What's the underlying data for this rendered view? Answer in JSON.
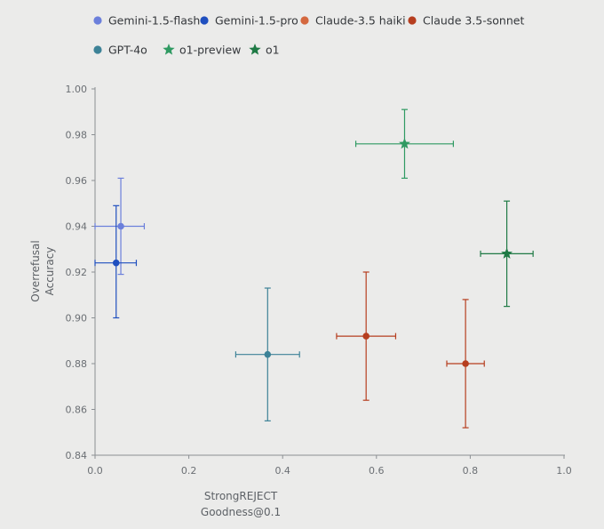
{
  "chart_data": {
    "type": "scatter",
    "title": "",
    "xlabel": [
      "StrongREJECT",
      "Goodness@0.1"
    ],
    "ylabel": [
      "Overrefusal",
      "Accuracy"
    ],
    "xlim": [
      0.0,
      1.0
    ],
    "ylim": [
      0.84,
      1.0
    ],
    "xticks": [
      "0.0",
      "0.2",
      "0.4",
      "0.6",
      "0.8",
      "1.0"
    ],
    "yticks": [
      "0.84",
      "0.86",
      "0.88",
      "0.90",
      "0.92",
      "0.94",
      "0.96",
      "0.98",
      "1.00"
    ],
    "grid": false,
    "legend_position": "top",
    "series": [
      {
        "name": "Gemini-1.5-flash",
        "color": "#6b7fdb",
        "marker": "circle",
        "x": 0.055,
        "y": 0.94,
        "x_err": [
          0.0,
          0.105
        ],
        "y_err": [
          0.919,
          0.961
        ]
      },
      {
        "name": "Gemini-1.5-pro",
        "color": "#1f4fbf",
        "marker": "circle",
        "x": 0.045,
        "y": 0.924,
        "x_err": [
          0.0,
          0.088
        ],
        "y_err": [
          0.9,
          0.949
        ]
      },
      {
        "name": "Claude-3.5 haiki",
        "color": "#d4683f",
        "marker": "circle",
        "x": null,
        "y": null
      },
      {
        "name": "Claude 3.5-sonnet",
        "color": "#b63e1f",
        "marker": "circle",
        "x": 0.578,
        "y": 0.892,
        "x_err": [
          0.515,
          0.641
        ],
        "y_err": [
          0.864,
          0.92
        ]
      },
      {
        "name": "",
        "color": "#b63e1f",
        "marker": "circle",
        "x": 0.79,
        "y": 0.88,
        "x_err": [
          0.75,
          0.83
        ],
        "y_err": [
          0.852,
          0.908
        ]
      },
      {
        "name": "GPT-4o",
        "color": "#3d8297",
        "marker": "circle",
        "x": 0.368,
        "y": 0.884,
        "x_err": [
          0.3,
          0.436
        ],
        "y_err": [
          0.855,
          0.913
        ]
      },
      {
        "name": "o1-preview",
        "color": "#2f9a62",
        "marker": "star",
        "x": 0.66,
        "y": 0.976,
        "x_err": [
          0.556,
          0.764
        ],
        "y_err": [
          0.961,
          0.991
        ]
      },
      {
        "name": "o1",
        "color": "#1f7a45",
        "marker": "star",
        "x": 0.878,
        "y": 0.928,
        "x_err": [
          0.822,
          0.934
        ],
        "y_err": [
          0.905,
          0.951
        ]
      }
    ]
  },
  "legend": [
    {
      "label": "Gemini-1.5-flash",
      "color": "#6b7fdb",
      "marker": "circle"
    },
    {
      "label": "Gemini-1.5-pro",
      "color": "#1f4fbf",
      "marker": "circle"
    },
    {
      "label": "Claude-3.5 haiki",
      "color": "#d4683f",
      "marker": "circle"
    },
    {
      "label": "Claude 3.5-sonnet",
      "color": "#b63e1f",
      "marker": "circle"
    },
    {
      "label": "GPT-4o",
      "color": "#3d8297",
      "marker": "circle"
    },
    {
      "label": "o1-preview",
      "color": "#2f9a62",
      "marker": "star"
    },
    {
      "label": "o1",
      "color": "#1f7a45",
      "marker": "star"
    }
  ],
  "colors": {
    "background": "#ebebea",
    "axis": "#8b8f93"
  }
}
